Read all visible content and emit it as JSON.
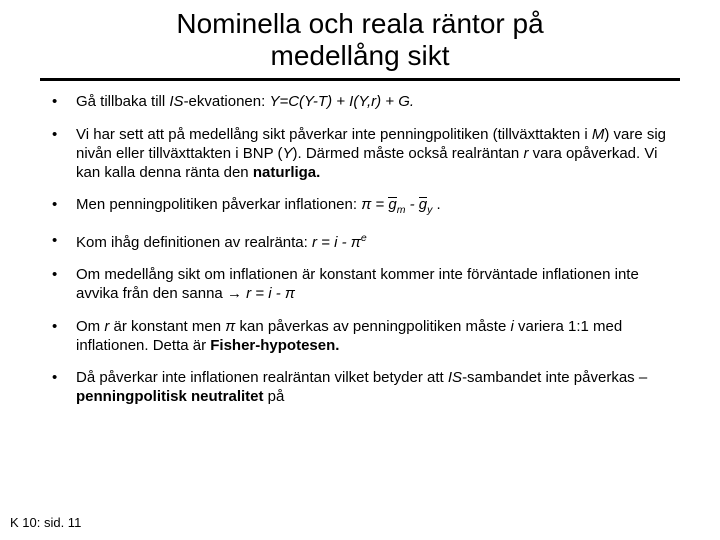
{
  "title_line1": "Nominella och reala räntor på",
  "title_line2": "medellång sikt",
  "b1_pre": "Gå tillbaka till ",
  "b1_is": "IS",
  "b1_mid": "-ekvationen: ",
  "b1_eq": "Y=C(Y-T) + I(Y,r) + G.",
  "b2_a": "Vi har sett att på medellång sikt påverkar inte penningpolitiken (tillväxttakten i ",
  "b2_m": "M",
  "b2_b": ") vare sig nivån eller tillväxttakten i BNP (",
  "b2_y": "Y",
  "b2_c": "). Därmed måste också realräntan ",
  "b2_r": "r",
  "b2_d": " vara opåverkad. Vi kan kalla denna ränta den ",
  "b2_nat": "naturliga.",
  "b3_a": "Men penningpolitiken påverkar inflationen: ",
  "b3_pi": "π",
  "b3_eq": " = ",
  "b3_gm_g": "g",
  "b3_gm_m": "m",
  "b3_minus": " - ",
  "b3_gy_g": "g",
  "b3_gy_y": "y",
  "b3_dot": " .",
  "b4_a": "Kom ihåg definitionen av realränta: ",
  "b4_eq_l": "r = i - ",
  "b4_pi": "π",
  "b4_e": "e",
  "b5_a": "Om medellång sikt om inflationen är konstant kommer inte förväntade inflationen inte avvika från den sanna ",
  "b5_arrow": "→",
  "b5_eq": " r = i - π",
  "b6_a": "Om ",
  "b6_r": "r",
  "b6_b": " är konstant men ",
  "b6_pi": "π",
  "b6_c": " kan påverkas av penningpolitiken måste ",
  "b6_i": "i",
  "b6_d": " variera 1:1 med inflationen.  Detta är ",
  "b6_f": "Fisher-hypotesen.",
  "b7_a": "Då påverkar inte inflationen realräntan vilket betyder att ",
  "b7_is": "IS",
  "b7_b": "-sambandet inte påverkas – ",
  "b7_bold": "penningpolitisk neutralitet",
  "b7_c": " på",
  "footer": "K 10: sid. 11"
}
